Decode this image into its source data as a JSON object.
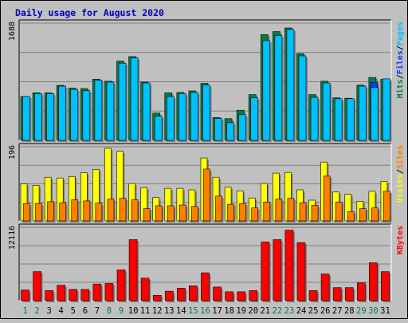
{
  "chart_data": {
    "type": "bar",
    "title": "Daily usage for August 2020",
    "categories": [
      "1",
      "2",
      "3",
      "4",
      "5",
      "6",
      "7",
      "8",
      "9",
      "10",
      "11",
      "12",
      "13",
      "14",
      "15",
      "16",
      "17",
      "18",
      "19",
      "20",
      "21",
      "22",
      "23",
      "24",
      "25",
      "26",
      "27",
      "28",
      "29",
      "30",
      "31"
    ],
    "weekend_days": [
      "1",
      "2",
      "8",
      "9",
      "15",
      "16",
      "22",
      "23",
      "29",
      "30"
    ],
    "panels": [
      {
        "id": "top",
        "ymax_label": "1688",
        "legend": [
          {
            "label": "Hits",
            "color": "#008040"
          },
          {
            "label": "/",
            "color": "#000000"
          },
          {
            "label": "Files",
            "color": "#0040ff"
          },
          {
            "label": "/",
            "color": "#000000"
          },
          {
            "label": "Pages",
            "color": "#00c0ff"
          }
        ],
        "ymax": 1688,
        "series": [
          {
            "name": "Hits",
            "color": "#008040",
            "values": [
              640,
              694,
              694,
              803,
              762,
              756,
              893,
              863,
              1157,
              1223,
              850,
              398,
              694,
              700,
              722,
              832,
              333,
              317,
              440,
              668,
              1543,
              1588,
              1641,
              1265,
              668,
              863,
              621,
              615,
              806,
              918,
              893
            ]
          },
          {
            "name": "Files",
            "color": "#0040ff",
            "values": [
              0,
              0,
              0,
              0,
              0,
              0,
              0,
              0,
              0,
              0,
              0,
              0,
              0,
              0,
              0,
              0,
              0,
              0,
              0,
              0,
              0,
              0,
              0,
              0,
              0,
              0,
              0,
              0,
              0,
              848,
              0
            ]
          },
          {
            "name": "Pages",
            "color": "#00c0ff",
            "values": [
              640,
              682,
              682,
              791,
              743,
              724,
              881,
              850,
              1127,
              1205,
              838,
              353,
              639,
              682,
              700,
              808,
              321,
              258,
              374,
              621,
              1455,
              1531,
              1619,
              1234,
              627,
              838,
              608,
              608,
              791,
              770,
              898
            ]
          }
        ]
      },
      {
        "id": "middle",
        "ymax_label": "196",
        "legend": [
          {
            "label": "Visits",
            "color": "#ffff00"
          },
          {
            "label": "/",
            "color": "#000000"
          },
          {
            "label": "Sites",
            "color": "#ff8000"
          }
        ],
        "ymax": 196,
        "series": [
          {
            "name": "Visits",
            "color": "#ffff00",
            "values": [
              100,
              96,
              118,
              116,
              120,
              130,
              139,
              196,
              188,
              101,
              90,
              63,
              88,
              88,
              84,
              170,
              118,
              91,
              81,
              62,
              101,
              129,
              131,
              84,
              56,
              159,
              78,
              72,
              53,
              80,
              106
            ]
          },
          {
            "name": "Sites",
            "color": "#ff8000",
            "values": [
              47,
              47,
              52,
              49,
              57,
              54,
              48,
              59,
              61,
              57,
              33,
              41,
              41,
              43,
              39,
              140,
              67,
              45,
              47,
              35,
              51,
              59,
              61,
              49,
              42,
              121,
              51,
              25,
              33,
              35,
              80
            ]
          }
        ]
      },
      {
        "id": "bottom",
        "ymax_label": "12116",
        "legend": [
          {
            "label": "KBytes",
            "color": "#ff0000"
          }
        ],
        "ymax": 12116,
        "series": [
          {
            "name": "KBytes",
            "color": "#ff0000",
            "values": [
              1800,
              4900,
              1700,
              2600,
              1900,
              1900,
              2800,
              2900,
              5200,
              10300,
              3800,
              900,
              1600,
              2100,
              2500,
              4700,
              2300,
              1500,
              1500,
              1700,
              9900,
              10300,
              11900,
              9800,
              1700,
              4500,
              2200,
              2200,
              3000,
              6400,
              4900
            ]
          }
        ]
      }
    ]
  }
}
